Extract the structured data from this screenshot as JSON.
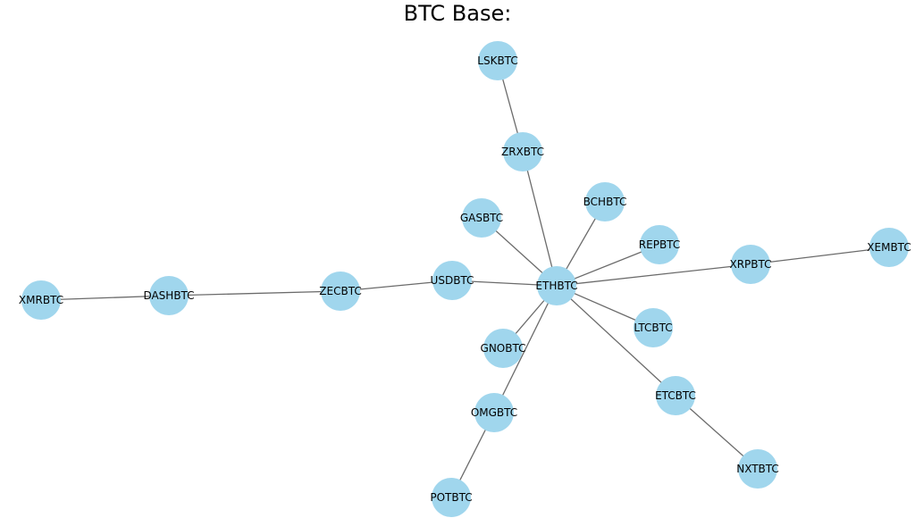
{
  "title": "BTC Base:",
  "style": {
    "node_color": "#a0d6ed",
    "edge_color": "#6b6b6b",
    "label_color": "#000000"
  },
  "nodes": [
    {
      "id": "ETHBTC",
      "label": "ETHBTC"
    },
    {
      "id": "LSKBTC",
      "label": "LSKBTC"
    },
    {
      "id": "ZRXBTC",
      "label": "ZRXBTC"
    },
    {
      "id": "BCHBTC",
      "label": "BCHBTC"
    },
    {
      "id": "GASBTC",
      "label": "GASBTC"
    },
    {
      "id": "REPBTC",
      "label": "REPBTC"
    },
    {
      "id": "XRPBTC",
      "label": "XRPBTC"
    },
    {
      "id": "XEMBTC",
      "label": "XEMBTC"
    },
    {
      "id": "USDBTC",
      "label": "USDBTC"
    },
    {
      "id": "ZECBTC",
      "label": "ZECBTC"
    },
    {
      "id": "DASHBTC",
      "label": "DASHBTC"
    },
    {
      "id": "XMRBTC",
      "label": "XMRBTC"
    },
    {
      "id": "LTCBTC",
      "label": "LTCBTC"
    },
    {
      "id": "GNOBTC",
      "label": "GNOBTC"
    },
    {
      "id": "OMGBTC",
      "label": "OMGBTC"
    },
    {
      "id": "POTBTC",
      "label": "POTBTC"
    },
    {
      "id": "ETCBTC",
      "label": "ETCBTC"
    },
    {
      "id": "NXTBTC",
      "label": "NXTBTC"
    }
  ],
  "edges": [
    [
      "LSKBTC",
      "ZRXBTC"
    ],
    [
      "ZRXBTC",
      "ETHBTC"
    ],
    [
      "BCHBTC",
      "ETHBTC"
    ],
    [
      "GASBTC",
      "ETHBTC"
    ],
    [
      "REPBTC",
      "ETHBTC"
    ],
    [
      "XRPBTC",
      "ETHBTC"
    ],
    [
      "XEMBTC",
      "XRPBTC"
    ],
    [
      "USDBTC",
      "ETHBTC"
    ],
    [
      "ZECBTC",
      "USDBTC"
    ],
    [
      "DASHBTC",
      "ZECBTC"
    ],
    [
      "XMRBTC",
      "DASHBTC"
    ],
    [
      "LTCBTC",
      "ETHBTC"
    ],
    [
      "GNOBTC",
      "ETHBTC"
    ],
    [
      "OMGBTC",
      "ETHBTC"
    ],
    [
      "POTBTC",
      "OMGBTC"
    ],
    [
      "ETCBTC",
      "ETHBTC"
    ],
    [
      "NXTBTC",
      "ETCBTC"
    ]
  ]
}
